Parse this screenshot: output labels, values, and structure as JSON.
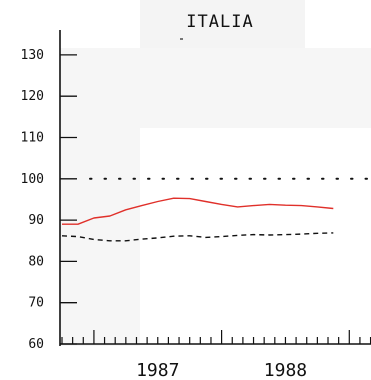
{
  "chart_data": {
    "type": "line",
    "title": "ITALIA",
    "ylim": [
      60,
      135
    ],
    "y_ticks": [
      60,
      70,
      80,
      90,
      100,
      110,
      120,
      130
    ],
    "x_labels": [
      {
        "label": "1987",
        "x": 1987.5
      },
      {
        "label": "1988",
        "x": 1988.5
      }
    ],
    "xlim": [
      1986.75,
      1989.17
    ],
    "reference_line": {
      "value": 100,
      "style": "dotted"
    },
    "series": [
      {
        "style": "solid",
        "color": "#e0302a",
        "x": [
          1986.75,
          1986.875,
          1987.0,
          1987.125,
          1987.25,
          1987.375,
          1987.5,
          1987.625,
          1987.75,
          1987.875,
          1988.0,
          1988.125,
          1988.25,
          1988.375,
          1988.5,
          1988.625,
          1988.75,
          1988.875
        ],
        "values": [
          89,
          89,
          90.5,
          91,
          92.5,
          93.5,
          94.5,
          95.3,
          95.2,
          94.5,
          93.8,
          93.2,
          93.5,
          93.8,
          93.6,
          93.5,
          93.2,
          92.8
        ]
      },
      {
        "style": "dashed",
        "color": "#111111",
        "x": [
          1986.75,
          1986.875,
          1987.0,
          1987.125,
          1987.25,
          1987.375,
          1987.5,
          1987.625,
          1987.75,
          1987.875,
          1988.0,
          1988.125,
          1988.25,
          1988.375,
          1988.5,
          1988.625,
          1988.75,
          1988.875
        ],
        "values": [
          86.2,
          86,
          85.3,
          85,
          85,
          85.4,
          85.7,
          86.1,
          86.2,
          85.8,
          86,
          86.3,
          86.5,
          86.4,
          86.5,
          86.6,
          86.8,
          86.9
        ]
      }
    ]
  }
}
